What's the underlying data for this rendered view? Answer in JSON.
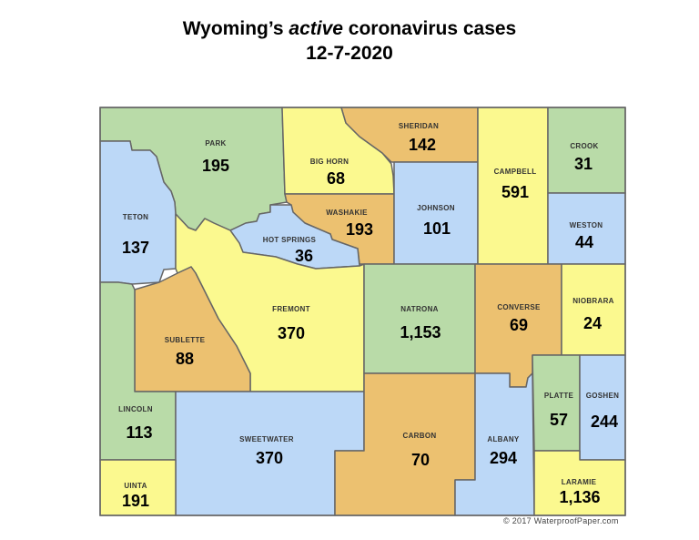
{
  "title_line1_pre": "Wyoming’s ",
  "title_line1_em": "active",
  "title_line1_post": " coronavirus cases",
  "title_line2": "12-7-2020",
  "copyright": "© 2017 WaterproofPaper.com",
  "colors": {
    "green": "#b9dba8",
    "yellow": "#fbf98f",
    "blue": "#bcd8f7",
    "orange": "#ecc170"
  },
  "counties": [
    {
      "name": "PARK",
      "cases": "195",
      "color": "green"
    },
    {
      "name": "TETON",
      "cases": "137",
      "color": "blue"
    },
    {
      "name": "BIG HORN",
      "cases": "68",
      "color": "yellow"
    },
    {
      "name": "SHERIDAN",
      "cases": "142",
      "color": "orange"
    },
    {
      "name": "WASHAKIE",
      "cases": "193",
      "color": "orange"
    },
    {
      "name": "HOT SPRINGS",
      "cases": "36",
      "color": "blue"
    },
    {
      "name": "JOHNSON",
      "cases": "101",
      "color": "blue"
    },
    {
      "name": "CAMPBELL",
      "cases": "591",
      "color": "yellow"
    },
    {
      "name": "CROOK",
      "cases": "31",
      "color": "green"
    },
    {
      "name": "WESTON",
      "cases": "44",
      "color": "blue"
    },
    {
      "name": "FREMONT",
      "cases": "370",
      "color": "yellow"
    },
    {
      "name": "SUBLETTE",
      "cases": "88",
      "color": "orange"
    },
    {
      "name": "NATRONA",
      "cases": "1,153",
      "color": "green"
    },
    {
      "name": "CONVERSE",
      "cases": "69",
      "color": "orange"
    },
    {
      "name": "NIOBRARA",
      "cases": "24",
      "color": "yellow"
    },
    {
      "name": "LINCOLN",
      "cases": "113",
      "color": "green"
    },
    {
      "name": "SWEETWATER",
      "cases": "370",
      "color": "blue"
    },
    {
      "name": "CARBON",
      "cases": "70",
      "color": "orange"
    },
    {
      "name": "ALBANY",
      "cases": "294",
      "color": "blue"
    },
    {
      "name": "PLATTE",
      "cases": "57",
      "color": "green"
    },
    {
      "name": "GOSHEN",
      "cases": "244",
      "color": "blue"
    },
    {
      "name": "UINTA",
      "cases": "191",
      "color": "yellow"
    },
    {
      "name": "LARAMIE",
      "cases": "1,136",
      "color": "yellow"
    }
  ]
}
